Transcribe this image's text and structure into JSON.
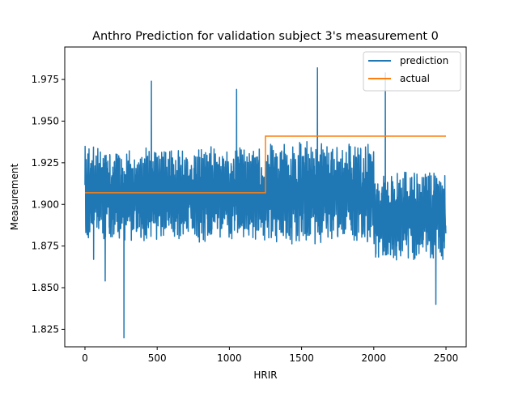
{
  "chart_data": {
    "type": "line",
    "title": "Anthro Prediction for validation subject 3's measurement 0",
    "xlabel": "HRIR",
    "ylabel": "Measurement",
    "xlim": [
      -140,
      2640
    ],
    "ylim": [
      1.8145,
      1.9945
    ],
    "xticks": [
      0,
      500,
      1000,
      1500,
      2000,
      2500
    ],
    "yticks": [
      1.825,
      1.85,
      1.875,
      1.9,
      1.925,
      1.95,
      1.975
    ],
    "xtick_labels": [
      "0",
      "500",
      "1000",
      "1500",
      "2000",
      "2500"
    ],
    "ytick_labels": [
      "1.825",
      "1.850",
      "1.875",
      "1.900",
      "1.925",
      "1.950",
      "1.975"
    ],
    "grid": false,
    "legend_position": "upper right",
    "series": [
      {
        "name": "prediction",
        "color": "#1f77b4",
        "generated": true,
        "n_points": 2500,
        "segments": [
          {
            "x_start": 0,
            "x_end": 1250,
            "mean": 1.906,
            "amplitude": 0.029
          },
          {
            "x_start": 1250,
            "x_end": 2000,
            "mean": 1.907,
            "amplitude": 0.031
          },
          {
            "x_start": 2000,
            "x_end": 2500,
            "mean": 1.893,
            "amplitude": 0.027
          }
        ],
        "peaks": [
          {
            "x": 270,
            "y": 1.82
          },
          {
            "x": 1610,
            "y": 1.982
          },
          {
            "x": 2080,
            "y": 1.979
          },
          {
            "x": 460,
            "y": 1.974
          },
          {
            "x": 2430,
            "y": 1.84
          },
          {
            "x": 60,
            "y": 1.867
          },
          {
            "x": 140,
            "y": 1.854
          },
          {
            "x": 1050,
            "y": 1.969
          }
        ]
      },
      {
        "name": "actual",
        "color": "#ff7f0e",
        "x": [
          0,
          1250,
          1250,
          2500
        ],
        "y": [
          1.907,
          1.907,
          1.941,
          1.941
        ]
      }
    ]
  }
}
